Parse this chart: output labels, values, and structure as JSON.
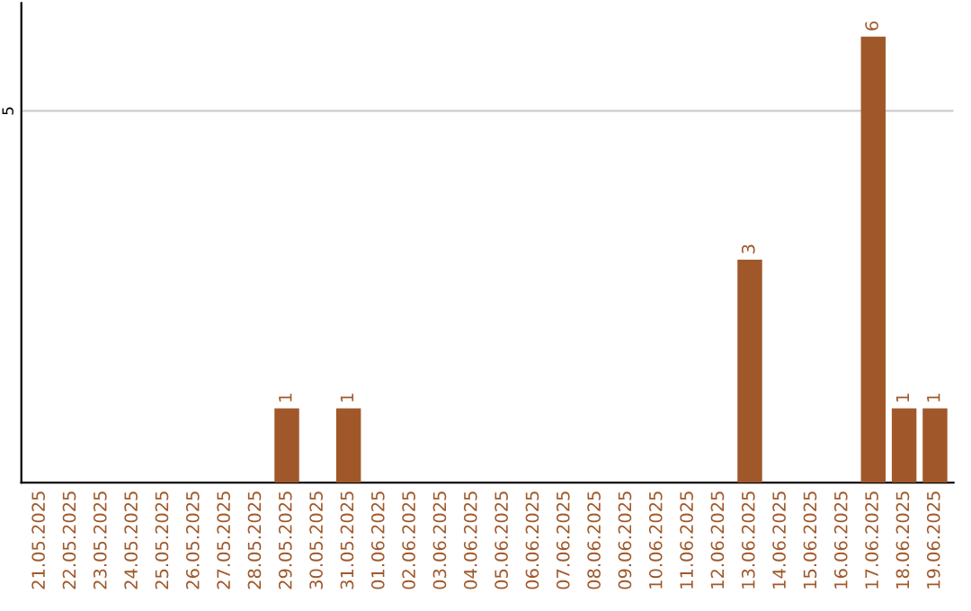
{
  "chart_data": {
    "type": "bar",
    "categories": [
      "21.05.2025",
      "22.05.2025",
      "23.05.2025",
      "24.05.2025",
      "25.05.2025",
      "26.05.2025",
      "27.05.2025",
      "28.05.2025",
      "29.05.2025",
      "30.05.2025",
      "31.05.2025",
      "01.06.2025",
      "02.06.2025",
      "03.06.2025",
      "04.06.2025",
      "05.06.2025",
      "06.06.2025",
      "07.06.2025",
      "08.06.2025",
      "09.06.2025",
      "10.06.2025",
      "11.06.2025",
      "12.06.2025",
      "13.06.2025",
      "14.06.2025",
      "15.06.2025",
      "16.06.2025",
      "17.06.2025",
      "18.06.2025",
      "19.06.2025"
    ],
    "values": [
      0,
      0,
      0,
      0,
      0,
      0,
      0,
      0,
      1,
      0,
      1,
      0,
      0,
      0,
      0,
      0,
      0,
      0,
      0,
      0,
      0,
      0,
      0,
      3,
      0,
      0,
      0,
      6,
      1,
      1
    ],
    "color": "#a0582a",
    "value_labels": [
      null,
      null,
      null,
      null,
      null,
      null,
      null,
      null,
      "1",
      null,
      "1",
      null,
      null,
      null,
      null,
      null,
      null,
      null,
      null,
      null,
      null,
      null,
      null,
      "3",
      null,
      null,
      null,
      "6",
      "1",
      "1"
    ],
    "ylim": [
      0,
      6.45
    ],
    "yticks": [
      5
    ],
    "grid": "y"
  }
}
